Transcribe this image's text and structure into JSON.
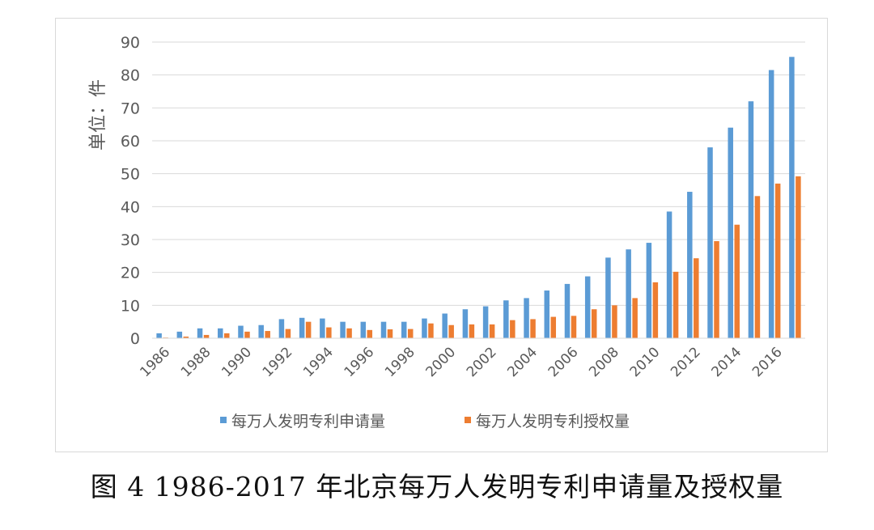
{
  "caption": "图 4 1986-2017 年北京每万人发明专利申请量及授权量",
  "chart_data": {
    "type": "bar",
    "title": "",
    "xlabel": "",
    "ylabel": "单位：件",
    "ylim": [
      0,
      90
    ],
    "yticks": [
      0,
      10,
      20,
      30,
      40,
      50,
      60,
      70,
      80,
      90
    ],
    "grid": true,
    "legend_position": "bottom",
    "categories": [
      "1986",
      "1987",
      "1988",
      "1989",
      "1990",
      "1991",
      "1992",
      "1993",
      "1994",
      "1995",
      "1996",
      "1997",
      "1998",
      "1999",
      "2000",
      "2001",
      "2002",
      "2003",
      "2004",
      "2005",
      "2006",
      "2007",
      "2008",
      "2009",
      "2010",
      "2011",
      "2012",
      "2013",
      "2014",
      "2015",
      "2016",
      "2017"
    ],
    "x_tick_labels": [
      "1986",
      "",
      "1988",
      "",
      "1990",
      "",
      "1992",
      "",
      "1994",
      "",
      "1996",
      "",
      "1998",
      "",
      "2000",
      "",
      "2002",
      "",
      "2004",
      "",
      "2006",
      "",
      "2008",
      "",
      "2010",
      "",
      "2012",
      "",
      "2014",
      "",
      "2016",
      ""
    ],
    "series": [
      {
        "name": "每万人发明专利申请量",
        "color": "#5b9bd5",
        "values": [
          1.5,
          2.0,
          3.0,
          3.0,
          3.8,
          4.0,
          5.8,
          6.2,
          6.0,
          5.0,
          5.0,
          5.0,
          5.0,
          6.0,
          7.5,
          8.8,
          9.7,
          11.5,
          12.2,
          14.5,
          16.5,
          18.8,
          24.5,
          27.0,
          29.0,
          38.5,
          44.5,
          58.0,
          64.0,
          72.0,
          81.5,
          85.5
        ]
      },
      {
        "name": "每万人发明专利授权量",
        "color": "#ed7d31",
        "values": [
          0.2,
          0.5,
          1.0,
          1.5,
          2.0,
          2.2,
          2.8,
          5.0,
          3.3,
          3.0,
          2.5,
          2.7,
          2.8,
          4.5,
          4.0,
          4.2,
          4.2,
          5.5,
          5.8,
          6.5,
          6.8,
          8.8,
          10.0,
          12.2,
          17.0,
          20.2,
          24.3,
          29.5,
          34.5,
          43.2,
          47.0,
          49.2
        ]
      }
    ]
  }
}
